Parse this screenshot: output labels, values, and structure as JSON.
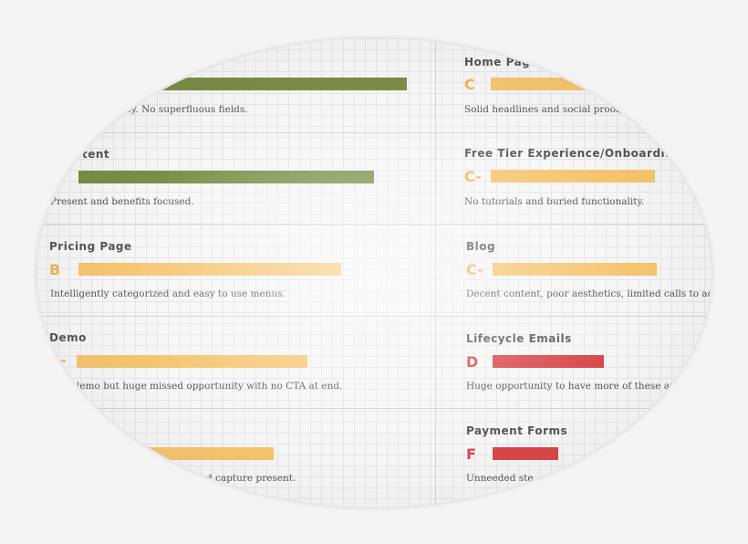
{
  "left": [
    {
      "description": "easy. No superfluous fields."
    },
    {
      "title": "tent",
      "grade": "-",
      "description": "Present and benefits focused."
    },
    {
      "title": "Pricing Page",
      "grade": "B",
      "description": "Intelligently categorized and easy to use menus."
    },
    {
      "title": "Demo",
      "grade": "-",
      "description": "lemo but huge missed opportunity with no CTA at end."
    },
    {
      "description": "d capture present."
    }
  ],
  "right": [
    {
      "title": "Home Page",
      "grade": "C",
      "description": "Solid headlines and social proof, po"
    },
    {
      "title": "Free Tier Experience/Onboarding",
      "grade": "C-",
      "description": "No tutorials and buried functionality."
    },
    {
      "title": "Blog",
      "grade": "C-",
      "description": "Decent content, poor aesthetics, limited calls to action."
    },
    {
      "title": "Lifecycle Emails",
      "grade": "D",
      "description": "Huge opportunity to have more of these and b"
    },
    {
      "title": "Payment Forms",
      "grade": "F",
      "description": "Unneeded ste"
    }
  ]
}
